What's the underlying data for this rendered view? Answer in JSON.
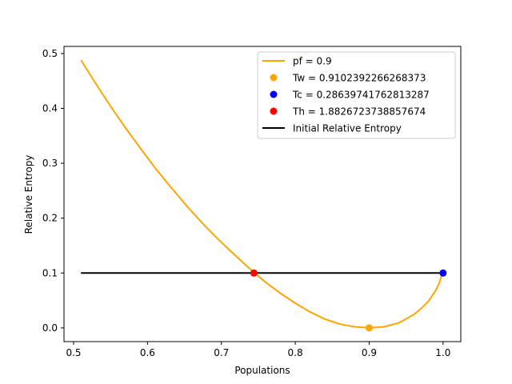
{
  "chart_data": {
    "type": "line",
    "title": "",
    "xlabel": "Populations",
    "ylabel": "Relative Entropy",
    "xlim": [
      0.487,
      1.024
    ],
    "ylim": [
      -0.025,
      0.513
    ],
    "xticks": [
      0.5,
      0.6,
      0.7,
      0.8,
      0.9,
      1.0
    ],
    "yticks": [
      0.0,
      0.1,
      0.2,
      0.3,
      0.4,
      0.5
    ],
    "grid": false,
    "legend_position": "top-right",
    "series": [
      {
        "name": "pf = 0.9",
        "kind": "line",
        "color": "#ffa500",
        "x": [
          0.51,
          0.53,
          0.55,
          0.57,
          0.59,
          0.61,
          0.63,
          0.65,
          0.67,
          0.69,
          0.71,
          0.73,
          0.745,
          0.76,
          0.78,
          0.8,
          0.82,
          0.84,
          0.86,
          0.88,
          0.9,
          0.92,
          0.94,
          0.96,
          0.97,
          0.98,
          0.99,
          0.995,
          0.999
        ],
        "y": [
          0.488,
          0.445,
          0.404,
          0.365,
          0.328,
          0.292,
          0.259,
          0.227,
          0.197,
          0.169,
          0.143,
          0.118,
          0.1,
          0.083,
          0.063,
          0.045,
          0.029,
          0.016,
          0.007,
          0.002,
          0.0,
          0.002,
          0.009,
          0.024,
          0.035,
          0.048,
          0.068,
          0.082,
          0.1
        ]
      },
      {
        "name": "Tw = 0.9102392266268373",
        "kind": "scatter",
        "color": "#ffa500",
        "x": [
          0.9
        ],
        "y": [
          0.0
        ]
      },
      {
        "name": "Tc = 0.28639741762813287",
        "kind": "scatter",
        "color": "#0000ff",
        "x": [
          1.0
        ],
        "y": [
          0.1
        ]
      },
      {
        "name": "Th = 1.8826723738857674",
        "kind": "scatter",
        "color": "#ff0000",
        "x": [
          0.744
        ],
        "y": [
          0.1
        ]
      },
      {
        "name": "Initial Relative Entropy",
        "kind": "line",
        "color": "#000000",
        "x": [
          0.51,
          1.0
        ],
        "y": [
          0.1,
          0.1
        ]
      }
    ]
  }
}
